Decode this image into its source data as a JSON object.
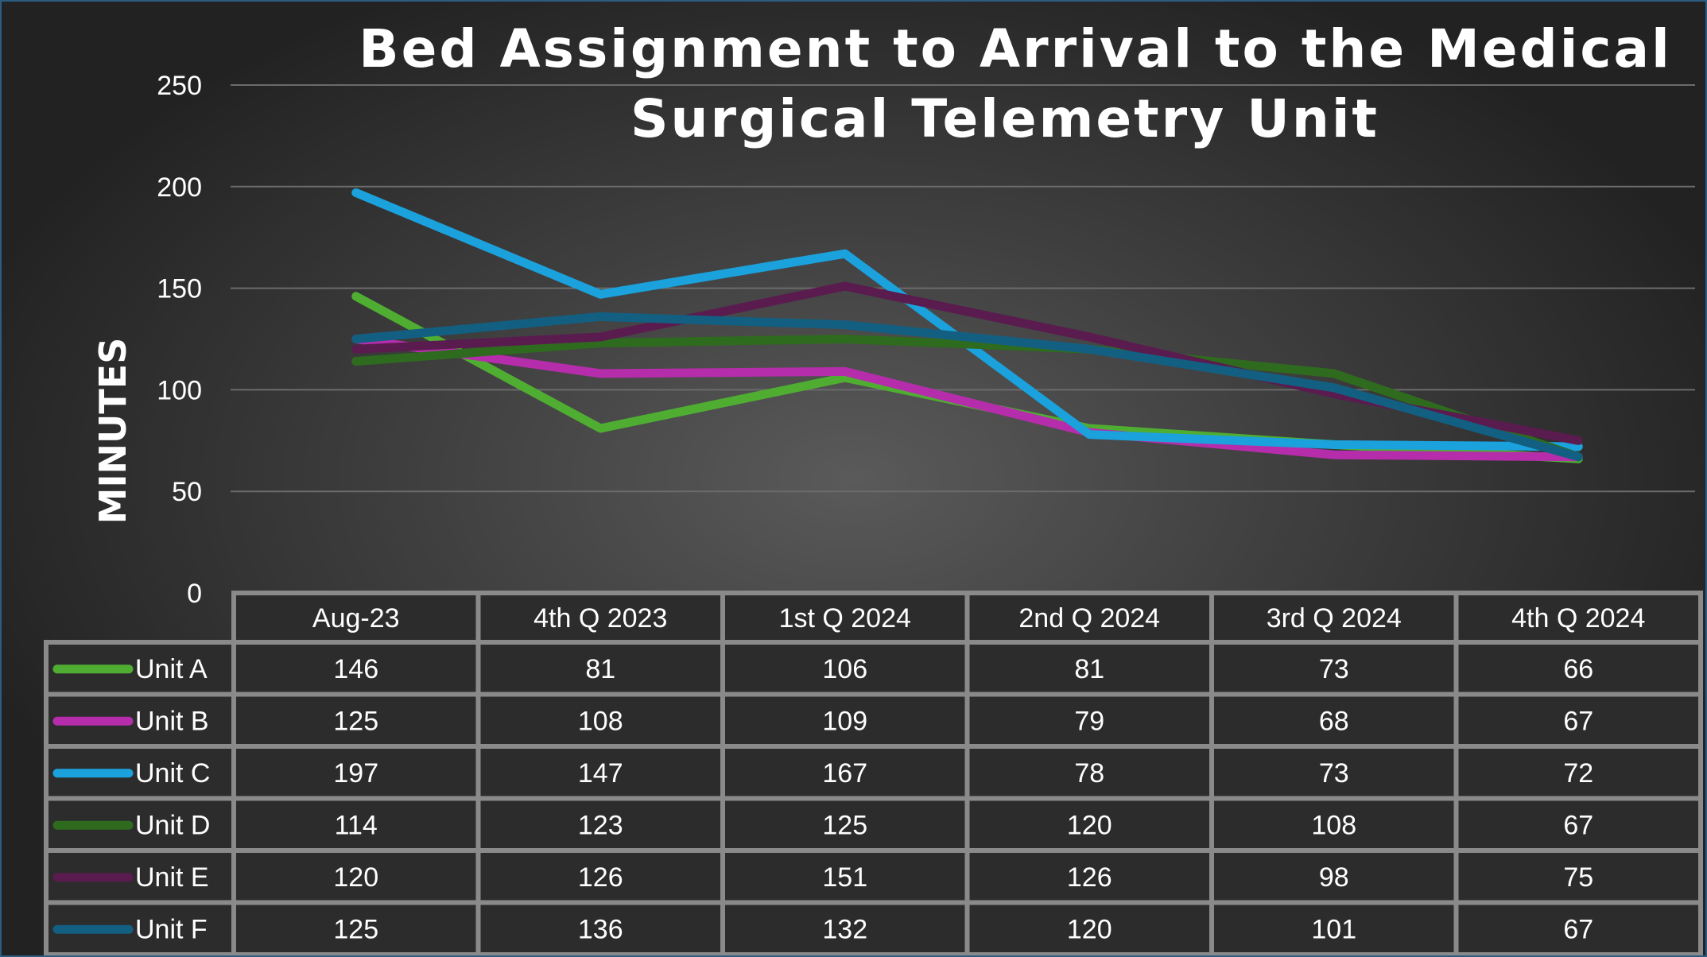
{
  "chart_data": {
    "type": "line",
    "title": "Bed Assignment to Arrival to the Medical Surgical Telemetry Unit",
    "title_lines": [
      "Bed Assignment to Arrival to the Medical",
      "Surgical Telemetry Unit"
    ],
    "ylabel": "MINUTES",
    "xlabel": "",
    "ylim": [
      0,
      250
    ],
    "yticks": [
      "0",
      "50",
      "100",
      "150",
      "200",
      "250"
    ],
    "grid": true,
    "legend": "data-table",
    "categories": [
      "Aug-23",
      "4th Q 2023",
      "1st Q 2024",
      "2nd Q 2024",
      "3rd Q 2024",
      "4th Q 2024"
    ],
    "series": [
      {
        "name": "Unit A",
        "color": "#4fae32",
        "values": [
          146,
          81,
          106,
          81,
          73,
          66
        ]
      },
      {
        "name": "Unit B",
        "color": "#b52dab",
        "values": [
          125,
          108,
          109,
          79,
          68,
          67
        ]
      },
      {
        "name": "Unit C",
        "color": "#1ba1dc",
        "values": [
          197,
          147,
          167,
          78,
          73,
          72
        ]
      },
      {
        "name": "Unit D",
        "color": "#2f6b1f",
        "values": [
          114,
          123,
          125,
          120,
          108,
          67
        ]
      },
      {
        "name": "Unit E",
        "color": "#5a1b4f",
        "values": [
          120,
          126,
          151,
          126,
          98,
          75
        ]
      },
      {
        "name": "Unit F",
        "color": "#135f82",
        "values": [
          125,
          136,
          132,
          120,
          101,
          67
        ]
      }
    ]
  }
}
